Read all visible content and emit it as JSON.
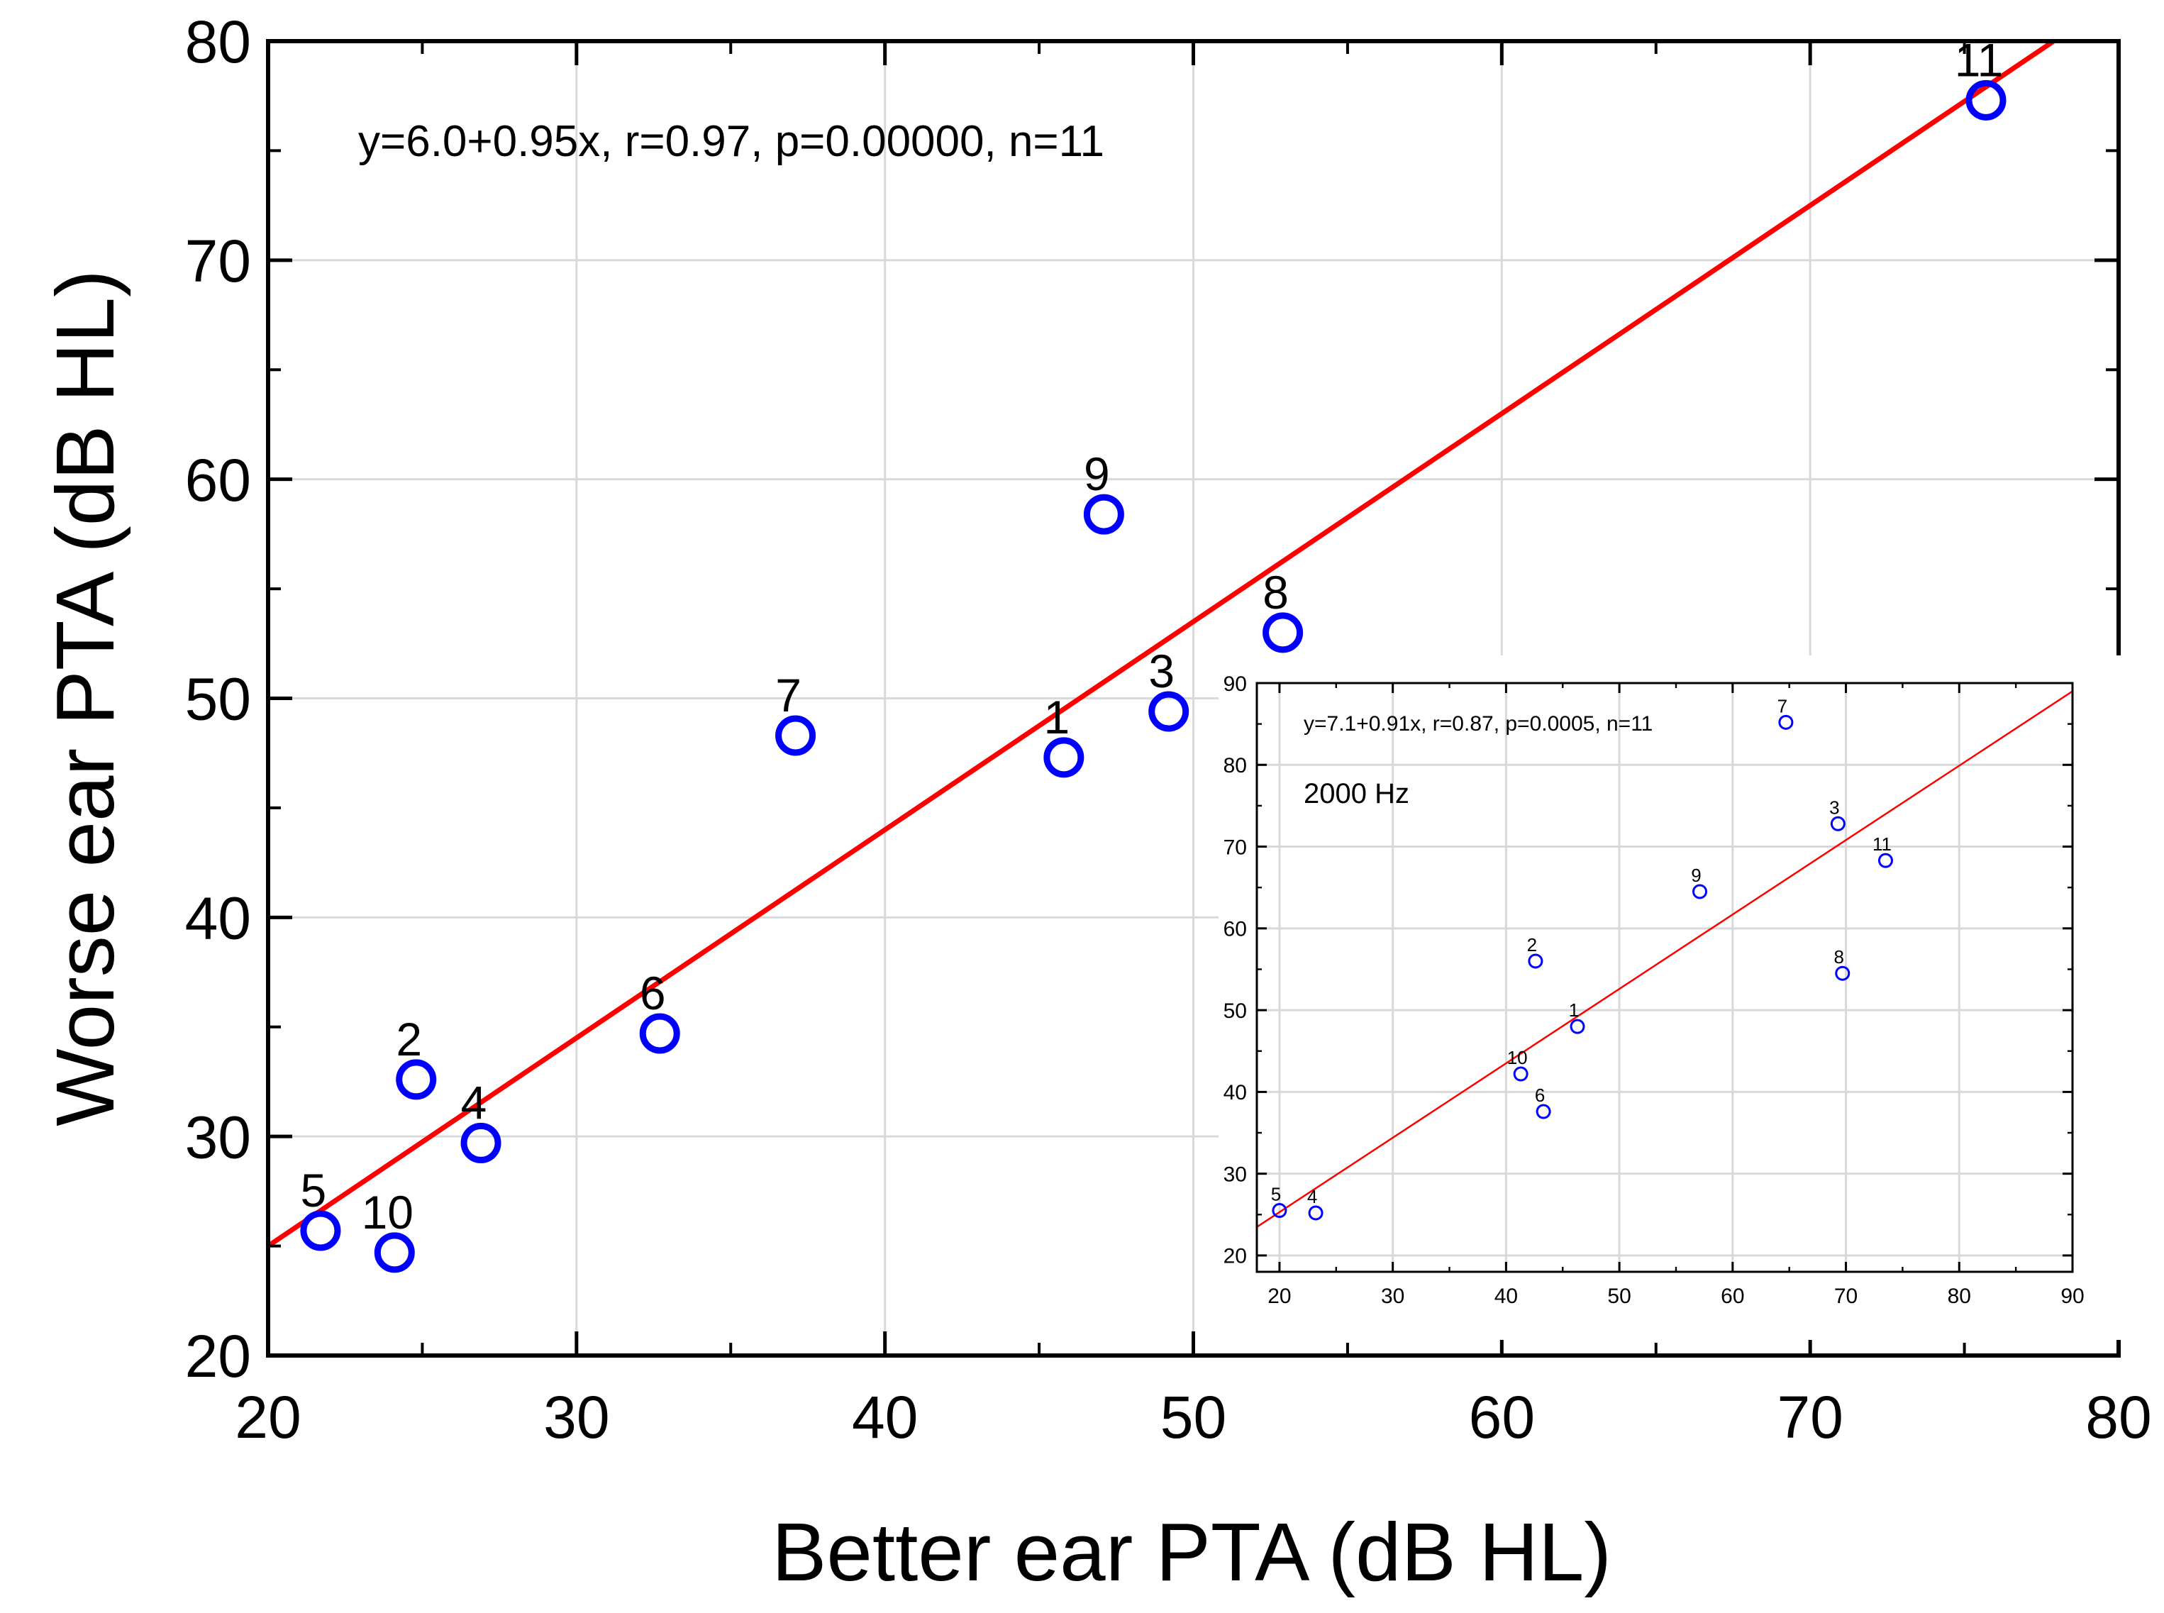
{
  "chart_data": [
    {
      "type": "scatter",
      "id": "main",
      "title": "",
      "xlabel": "Better ear PTA (dB HL)",
      "ylabel": "Worse ear PTA (dB HL)",
      "xlim": [
        20,
        80
      ],
      "ylim": [
        20,
        80
      ],
      "xticks": [
        20,
        30,
        40,
        50,
        60,
        70,
        80
      ],
      "yticks": [
        20,
        30,
        40,
        50,
        60,
        70,
        80
      ],
      "grid": true,
      "annotation": "y=6.0+0.95x, r=0.97, p=0.00000, n=11",
      "regression": {
        "intercept": 6.0,
        "slope": 0.95,
        "color": "#ff0000"
      },
      "marker_color": "#0000ff",
      "points": [
        {
          "label": "1",
          "x": 45.8,
          "y": 47.3
        },
        {
          "label": "2",
          "x": 24.8,
          "y": 32.6
        },
        {
          "label": "3",
          "x": 49.2,
          "y": 49.4
        },
        {
          "label": "4",
          "x": 26.9,
          "y": 29.7
        },
        {
          "label": "5",
          "x": 21.7,
          "y": 25.7
        },
        {
          "label": "6",
          "x": 32.7,
          "y": 34.7
        },
        {
          "label": "7",
          "x": 37.1,
          "y": 48.3
        },
        {
          "label": "8",
          "x": 52.9,
          "y": 53.0
        },
        {
          "label": "9",
          "x": 47.1,
          "y": 58.4
        },
        {
          "label": "10",
          "x": 24.1,
          "y": 24.7
        },
        {
          "label": "11",
          "x": 75.7,
          "y": 77.3
        }
      ]
    },
    {
      "type": "scatter",
      "id": "inset",
      "title": "2000 Hz",
      "xlabel": "",
      "ylabel": "",
      "xlim": [
        18,
        90
      ],
      "ylim": [
        18,
        90
      ],
      "xticks": [
        20,
        30,
        40,
        50,
        60,
        70,
        80,
        90
      ],
      "yticks": [
        20,
        30,
        40,
        50,
        60,
        70,
        80,
        90
      ],
      "grid": true,
      "annotation": "y=7.1+0.91x, r=0.87, p=0.0005, n=11",
      "regression": {
        "intercept": 7.1,
        "slope": 0.91,
        "color": "#ff0000"
      },
      "marker_color": "#0000ff",
      "points": [
        {
          "label": "1",
          "x": 46.3,
          "y": 48.0
        },
        {
          "label": "2",
          "x": 42.6,
          "y": 56.0
        },
        {
          "label": "3",
          "x": 69.3,
          "y": 72.8
        },
        {
          "label": "4",
          "x": 23.2,
          "y": 25.2
        },
        {
          "label": "5",
          "x": 20.0,
          "y": 25.5
        },
        {
          "label": "6",
          "x": 43.3,
          "y": 37.6
        },
        {
          "label": "7",
          "x": 64.7,
          "y": 85.2
        },
        {
          "label": "8",
          "x": 69.7,
          "y": 54.5
        },
        {
          "label": "9",
          "x": 57.1,
          "y": 64.5
        },
        {
          "label": "10",
          "x": 41.3,
          "y": 42.2
        },
        {
          "label": "11",
          "x": 73.5,
          "y": 68.3
        }
      ]
    }
  ]
}
